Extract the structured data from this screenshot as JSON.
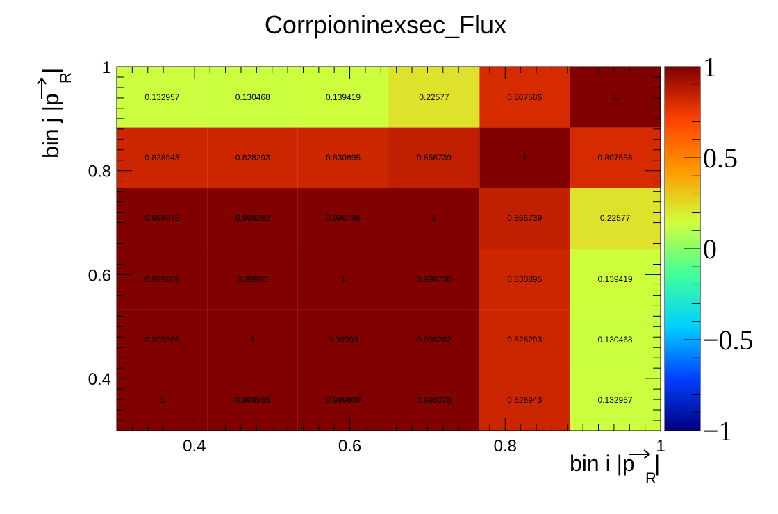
{
  "chart_data": {
    "type": "heatmap",
    "title": "Corrpioninexsec_Flux",
    "xlabel": {
      "main": "bin i |",
      "vec": "p",
      "sub": "R",
      "close": "|"
    },
    "ylabel": {
      "main": "bin j |",
      "vec": "p",
      "sub": "R",
      "close": "|"
    },
    "x_edges": [
      0.3,
      0.417,
      0.533,
      0.65,
      0.767,
      0.883,
      1.0
    ],
    "y_edges": [
      0.3,
      0.417,
      0.533,
      0.65,
      0.767,
      0.883,
      1.0
    ],
    "xlim": [
      0.3,
      1.0
    ],
    "ylim": [
      0.3,
      1.0
    ],
    "x_ticks": [
      {
        "value": 0.4,
        "label": "0.4"
      },
      {
        "value": 0.6,
        "label": "0.6"
      },
      {
        "value": 0.8,
        "label": "0.8"
      },
      {
        "value": 1.0,
        "label": "1"
      }
    ],
    "y_ticks": [
      {
        "value": 0.4,
        "label": "0.4"
      },
      {
        "value": 0.6,
        "label": "0.6"
      },
      {
        "value": 0.8,
        "label": "0.8"
      },
      {
        "value": 1.0,
        "label": "1"
      }
    ],
    "values_rows_top_to_bottom": [
      [
        0.132957,
        0.130468,
        0.139419,
        0.22577,
        0.807586,
        1
      ],
      [
        0.828943,
        0.828293,
        0.830895,
        0.856739,
        1,
        0.807586
      ],
      [
        0.998078,
        0.998282,
        0.998736,
        1,
        0.856739,
        0.22577
      ],
      [
        0.999809,
        0.99993,
        1,
        0.998736,
        0.830895,
        0.139419
      ],
      [
        0.999966,
        1,
        0.99993,
        0.998282,
        0.828293,
        0.130468
      ],
      [
        1,
        0.999966,
        0.999809,
        0.998078,
        0.828943,
        0.132957
      ]
    ],
    "labels_rows_top_to_bottom": [
      [
        "0.132957",
        "0.130468",
        "0.139419",
        "0.22577",
        "0.807586",
        "1"
      ],
      [
        "0.828943",
        "0.828293",
        "0.830895",
        "0.856739",
        "1",
        "0.807586"
      ],
      [
        "0.998078",
        "0.998282",
        "0.998736",
        "1",
        "0.856739",
        "0.22577"
      ],
      [
        "0.999809",
        "0.99993",
        "1",
        "0.998736",
        "0.830895",
        "0.139419"
      ],
      [
        "0.999966",
        "1",
        "0.99993",
        "0.998282",
        "0.828293",
        "0.130468"
      ],
      [
        "1",
        "0.999966",
        "0.999809",
        "0.998078",
        "0.828943",
        "0.132957"
      ]
    ],
    "zlim": [
      -1,
      1
    ],
    "colorbar_ticks": [
      {
        "value": 1,
        "label": "1"
      },
      {
        "value": 0.5,
        "label": "0.5"
      },
      {
        "value": 0,
        "label": "0"
      },
      {
        "value": -0.5,
        "label": "−0.5"
      },
      {
        "value": -1,
        "label": "−1"
      }
    ],
    "palette": [
      "#000080",
      "#0040ff",
      "#00d0ff",
      "#40ff9a",
      "#d0ff3c",
      "#ff9a00",
      "#ff4000",
      "#800000"
    ],
    "grid": false,
    "legend": "colorbar-right"
  }
}
